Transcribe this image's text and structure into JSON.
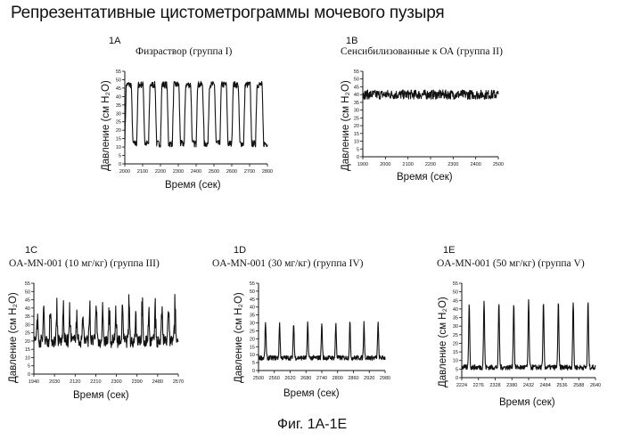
{
  "figure_title": "Репрезентативные цистометрограммы мочевого пузыря",
  "caption": "Фиг. 1A-1E",
  "y_unit_label": "Давление (см H₂O)",
  "x_unit_label": "Время (сек)",
  "chart_data": [
    {
      "type": "line",
      "id": "1A",
      "panel_label": "1A",
      "subtitle": "Физраствор (группа I)",
      "xlabel": "Время (сек)",
      "ylabel": "Давление (см H2O)",
      "x_ticks": [
        "2000",
        "2100",
        "2200",
        "2300",
        "2400",
        "2500",
        "2600",
        "2700",
        "2800"
      ],
      "xlim": [
        2000,
        2800
      ],
      "ylim": [
        0,
        55
      ],
      "series": [
        {
          "pattern": "regular-contractions",
          "baseline": 12,
          "peak": 47,
          "contractions": 12
        }
      ]
    },
    {
      "type": "line",
      "id": "1B",
      "panel_label": "1B",
      "subtitle": "Сенсибилизованные к ОА (группа II)",
      "xlabel": "Время (сек)",
      "ylabel": "Давление (см H2O)",
      "x_ticks": [
        "1900",
        "2000",
        "2100",
        "2200",
        "2300",
        "2400",
        "2500"
      ],
      "xlim": [
        1900,
        2500
      ],
      "ylim": [
        0,
        55
      ],
      "series": [
        {
          "pattern": "noisy-high",
          "level": 40,
          "noise": 3
        }
      ]
    },
    {
      "type": "line",
      "id": "1C",
      "panel_label": "1C",
      "subtitle": "OA-MN-001 (10 мг/кг) (группа III)",
      "xlabel": "Время (сек)",
      "ylabel": "Давление (см H2O)",
      "x_ticks": [
        "1940",
        "2030",
        "2120",
        "2210",
        "2300",
        "2390",
        "2480",
        "2570"
      ],
      "xlim": [
        1940,
        2570
      ],
      "ylim": [
        0,
        55
      ],
      "series": [
        {
          "pattern": "irregular",
          "baseline": 20,
          "peak": 48,
          "contractions": 22
        }
      ]
    },
    {
      "type": "line",
      "id": "1D",
      "panel_label": "1D",
      "subtitle": "OA-MN-001 (30 мг/кг) (группа IV)",
      "xlabel": "Время (сек)",
      "ylabel": "Давление (см H2O)",
      "x_ticks": [
        "2500",
        "2560",
        "2620",
        "2680",
        "2740",
        "2800",
        "2860",
        "2920",
        "2980"
      ],
      "xlim": [
        2500,
        2980
      ],
      "ylim": [
        0,
        55
      ],
      "series": [
        {
          "pattern": "spikes",
          "baseline": 8,
          "peak": 30,
          "contractions": 9
        }
      ]
    },
    {
      "type": "line",
      "id": "1E",
      "panel_label": "1E",
      "subtitle": "OA-MN-001 (50 мг/кг) (группа V)",
      "xlabel": "Время (сек)",
      "ylabel": "Давление (см H2O)",
      "x_ticks": [
        "2224",
        "2276",
        "2328",
        "2380",
        "2432",
        "2484",
        "2536",
        "2588",
        "2640"
      ],
      "xlim": [
        2224,
        2640
      ],
      "ylim": [
        0,
        55
      ],
      "series": [
        {
          "pattern": "spikes",
          "baseline": 6,
          "peak": 44,
          "contractions": 9
        }
      ]
    }
  ]
}
